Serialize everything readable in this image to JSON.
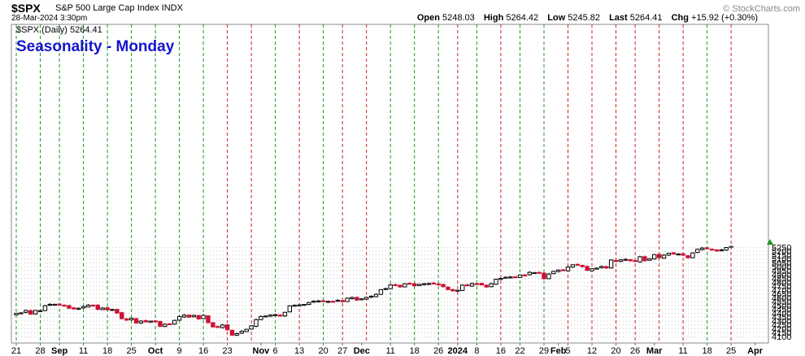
{
  "header": {
    "symbol": "$SPX",
    "description": "S&P 500 Large Cap Index INDX",
    "date": "28-Mar-2024 3:30pm",
    "quote": [
      {
        "label": "Open",
        "value": "5248.03"
      },
      {
        "label": "High",
        "value": "5264.42"
      },
      {
        "label": "Low",
        "value": "5245.82"
      },
      {
        "label": "Last",
        "value": "5264.41"
      },
      {
        "label": "Chg",
        "value": "+15.92 (+0.30%)"
      }
    ],
    "watermark": "© StockCharts.com"
  },
  "legend": "$SPX (Daily) 5264.41",
  "annotation": "Seasonality - Monday",
  "colors": {
    "up_candle": "#000000",
    "down_candle": "#cc1133",
    "last_candle": "#e8e07a",
    "green_line": "#1a9a1a",
    "red_line": "#cc2222",
    "grid": "#c8c8c8",
    "annotation": "#1515cc",
    "up_arrow": "#1a9a1a"
  },
  "chart_data": {
    "type": "candlestick",
    "y_range": [
      4080,
      5290
    ],
    "y_ticks": [
      4100,
      4150,
      4200,
      4250,
      4300,
      4350,
      4400,
      4450,
      4500,
      4550,
      4600,
      4650,
      4700,
      4750,
      4800,
      4850,
      4900,
      4950,
      5000,
      5050,
      5100,
      5150,
      5200,
      5250
    ],
    "x_labels": [
      {
        "label": "21",
        "day": 0,
        "bold": false
      },
      {
        "label": "28",
        "day": 5,
        "bold": false
      },
      {
        "label": "Sep",
        "day": 9,
        "bold": true
      },
      {
        "label": "11",
        "day": 14,
        "bold": false
      },
      {
        "label": "18",
        "day": 19,
        "bold": false
      },
      {
        "label": "25",
        "day": 24,
        "bold": false
      },
      {
        "label": "Oct",
        "day": 29,
        "bold": true
      },
      {
        "label": "9",
        "day": 34,
        "bold": false
      },
      {
        "label": "16",
        "day": 39,
        "bold": false
      },
      {
        "label": "23",
        "day": 44,
        "bold": false
      },
      {
        "label": "Nov",
        "day": 51,
        "bold": true
      },
      {
        "label": "6",
        "day": 54,
        "bold": false
      },
      {
        "label": "13",
        "day": 59,
        "bold": false
      },
      {
        "label": "20",
        "day": 64,
        "bold": false
      },
      {
        "label": "27",
        "day": 68,
        "bold": false
      },
      {
        "label": "Dec",
        "day": 72,
        "bold": true
      },
      {
        "label": "11",
        "day": 78,
        "bold": false
      },
      {
        "label": "18",
        "day": 83,
        "bold": false
      },
      {
        "label": "26",
        "day": 88,
        "bold": false
      },
      {
        "label": "2024",
        "day": 92,
        "bold": true
      },
      {
        "label": "8",
        "day": 96,
        "bold": false
      },
      {
        "label": "16",
        "day": 101,
        "bold": false
      },
      {
        "label": "22",
        "day": 105,
        "bold": false
      },
      {
        "label": "29",
        "day": 110,
        "bold": false
      },
      {
        "label": "Feb",
        "day": 113,
        "bold": true
      },
      {
        "label": "5",
        "day": 115,
        "bold": false
      },
      {
        "label": "12",
        "day": 120,
        "bold": false
      },
      {
        "label": "20",
        "day": 125,
        "bold": false
      },
      {
        "label": "26",
        "day": 129,
        "bold": false
      },
      {
        "label": "Mar",
        "day": 133,
        "bold": true
      },
      {
        "label": "11",
        "day": 139,
        "bold": false
      },
      {
        "label": "18",
        "day": 144,
        "bold": false
      },
      {
        "label": "25",
        "day": 149,
        "bold": false
      },
      {
        "label": "Apr",
        "day": 154,
        "bold": true
      }
    ],
    "monday_markers": [
      {
        "day": 0,
        "color": "green"
      },
      {
        "day": 5,
        "color": "green"
      },
      {
        "day": 9,
        "color": "green"
      },
      {
        "day": 14,
        "color": "green"
      },
      {
        "day": 19,
        "color": "green"
      },
      {
        "day": 24,
        "color": "green"
      },
      {
        "day": 29,
        "color": "green"
      },
      {
        "day": 34,
        "color": "green"
      },
      {
        "day": 39,
        "color": "green"
      },
      {
        "day": 44,
        "color": "red"
      },
      {
        "day": 49,
        "color": "red"
      },
      {
        "day": 54,
        "color": "green"
      },
      {
        "day": 59,
        "color": "red"
      },
      {
        "day": 64,
        "color": "green"
      },
      {
        "day": 68,
        "color": "red"
      },
      {
        "day": 73,
        "color": "red"
      },
      {
        "day": 78,
        "color": "green"
      },
      {
        "day": 83,
        "color": "green"
      },
      {
        "day": 88,
        "color": "green"
      },
      {
        "day": 92,
        "color": "red"
      },
      {
        "day": 96,
        "color": "green"
      },
      {
        "day": 101,
        "color": "red"
      },
      {
        "day": 105,
        "color": "green"
      },
      {
        "day": 110,
        "color": "green"
      },
      {
        "day": 115,
        "color": "red"
      },
      {
        "day": 120,
        "color": "red"
      },
      {
        "day": 125,
        "color": "red"
      },
      {
        "day": 129,
        "color": "red"
      },
      {
        "day": 134,
        "color": "red"
      },
      {
        "day": 139,
        "color": "red"
      },
      {
        "day": 144,
        "color": "green"
      },
      {
        "day": 149,
        "color": "red"
      }
    ],
    "ohlc_close_series": [
      4399,
      4405,
      4436,
      4387,
      4436,
      4434,
      4497,
      4515,
      4516,
      4510,
      4498,
      4465,
      4455,
      4465,
      4487,
      4505,
      4500,
      4450,
      4467,
      4444,
      4450,
      4402,
      4330,
      4312,
      4337,
      4274,
      4299,
      4288,
      4299,
      4300,
      4229,
      4258,
      4263,
      4308,
      4358,
      4376,
      4349,
      4373,
      4327,
      4373,
      4278,
      4224,
      4217,
      4248,
      4186,
      4117,
      4137,
      4167,
      4193,
      4238,
      4318,
      4358,
      4365,
      4378,
      4382,
      4365,
      4412,
      4496,
      4503,
      4508,
      4514,
      4538,
      4556,
      4559,
      4550,
      4554,
      4550,
      4567,
      4549,
      4594,
      4604,
      4570,
      4586,
      4605,
      4620,
      4644,
      4705,
      4719,
      4766,
      4768,
      4740,
      4781,
      4784,
      4754,
      4774,
      4782,
      4784,
      4782,
      4769,
      4743,
      4705,
      4689,
      4697,
      4764,
      4757,
      4783,
      4780,
      4766,
      4739,
      4781,
      4840,
      4850,
      4865,
      4868,
      4868,
      4894,
      4891,
      4928,
      4925,
      4925,
      4846,
      4906,
      4942,
      4958,
      4954,
      4997,
      5026,
      5021,
      5001,
      4954,
      4975,
      4982,
      5005,
      4982,
      5088,
      5069,
      5089,
      5096,
      5078,
      5069,
      5130,
      5078,
      5104,
      5157,
      5117,
      5150,
      5175,
      5165,
      5165,
      5149,
      5117,
      5179,
      5225,
      5242,
      5234,
      5218,
      5204,
      5218,
      5249,
      5264
    ]
  }
}
